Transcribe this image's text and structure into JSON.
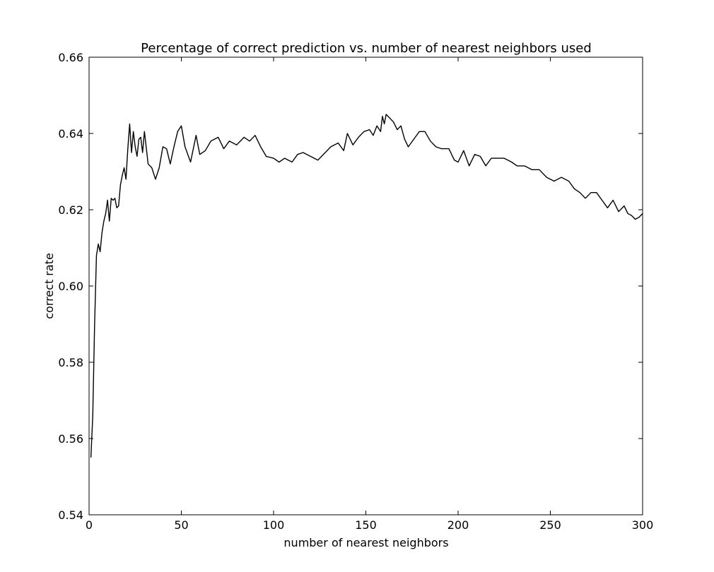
{
  "chart_data": {
    "type": "line",
    "title": "Percentage of correct prediction vs. number of nearest neighbors used",
    "xlabel": "number of nearest neighbors",
    "ylabel": "correct rate",
    "xlim": [
      0,
      300
    ],
    "ylim": [
      0.54,
      0.66
    ],
    "xticks": [
      0,
      50,
      100,
      150,
      200,
      250,
      300
    ],
    "xtick_labels": [
      "0",
      "50",
      "100",
      "150",
      "200",
      "250",
      "300"
    ],
    "yticks": [
      0.54,
      0.56,
      0.58,
      0.6,
      0.62,
      0.64,
      0.66
    ],
    "ytick_labels": [
      "0.54",
      "0.56",
      "0.58",
      "0.60",
      "0.62",
      "0.64",
      "0.66"
    ],
    "grid": false,
    "series": [
      {
        "color": "#000000",
        "x": [
          1,
          2,
          3,
          4,
          5,
          6,
          7,
          8,
          9,
          10,
          11,
          12,
          13,
          14,
          15,
          16,
          17,
          18,
          19,
          20,
          21,
          22,
          23,
          24,
          25,
          26,
          27,
          28,
          29,
          30,
          32,
          34,
          36,
          38,
          40,
          42,
          44,
          46,
          48,
          50,
          52,
          55,
          58,
          60,
          63,
          66,
          70,
          73,
          76,
          80,
          84,
          87,
          90,
          93,
          96,
          100,
          103,
          106,
          110,
          113,
          116,
          120,
          124,
          128,
          131,
          135,
          138,
          140,
          143,
          146,
          149,
          152,
          154,
          156,
          158,
          159,
          160,
          161,
          163,
          165,
          167,
          169,
          171,
          173,
          176,
          179,
          182,
          185,
          188,
          191,
          193,
          195,
          198,
          200,
          203,
          206,
          209,
          212,
          215,
          218,
          221,
          225,
          229,
          232,
          236,
          240,
          244,
          248,
          252,
          256,
          260,
          263,
          266,
          269,
          272,
          275,
          278,
          281,
          284,
          287,
          290,
          292,
          294,
          296,
          298,
          300
        ],
        "y": [
          0.555,
          0.566,
          0.59,
          0.608,
          0.611,
          0.609,
          0.614,
          0.617,
          0.619,
          0.6225,
          0.617,
          0.623,
          0.6225,
          0.623,
          0.6205,
          0.621,
          0.6265,
          0.629,
          0.631,
          0.628,
          0.636,
          0.6425,
          0.635,
          0.6405,
          0.6365,
          0.634,
          0.6385,
          0.639,
          0.635,
          0.6405,
          0.632,
          0.631,
          0.628,
          0.631,
          0.6365,
          0.636,
          0.632,
          0.6365,
          0.6405,
          0.642,
          0.6365,
          0.6325,
          0.6395,
          0.6345,
          0.6355,
          0.638,
          0.639,
          0.636,
          0.638,
          0.637,
          0.639,
          0.638,
          0.6395,
          0.6365,
          0.634,
          0.6335,
          0.6325,
          0.6335,
          0.6325,
          0.6345,
          0.635,
          0.634,
          0.633,
          0.635,
          0.6365,
          0.6375,
          0.6355,
          0.64,
          0.637,
          0.639,
          0.6405,
          0.641,
          0.6395,
          0.642,
          0.6405,
          0.6445,
          0.6425,
          0.645,
          0.644,
          0.643,
          0.641,
          0.642,
          0.6385,
          0.6365,
          0.6385,
          0.6405,
          0.6405,
          0.638,
          0.6365,
          0.636,
          0.636,
          0.636,
          0.633,
          0.6325,
          0.6355,
          0.6315,
          0.6345,
          0.634,
          0.6315,
          0.6335,
          0.6335,
          0.6335,
          0.6325,
          0.6315,
          0.6315,
          0.6305,
          0.6305,
          0.6285,
          0.6275,
          0.6285,
          0.6275,
          0.6255,
          0.6245,
          0.623,
          0.6245,
          0.6245,
          0.6225,
          0.6205,
          0.6225,
          0.6195,
          0.621,
          0.619,
          0.6185,
          0.6175,
          0.618,
          0.619
        ]
      }
    ]
  }
}
